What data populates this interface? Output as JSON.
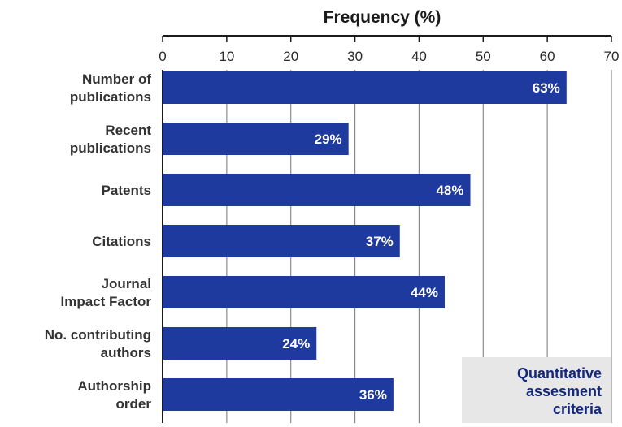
{
  "chart_data": {
    "type": "bar",
    "orientation": "horizontal",
    "title": "Frequency (%)",
    "xlim": [
      0,
      70
    ],
    "x_ticks": [
      0,
      10,
      20,
      30,
      40,
      50,
      60,
      70
    ],
    "grid": true,
    "bar_color": "#1f3a9e",
    "categories": [
      [
        "Number of",
        "publications"
      ],
      [
        "Recent",
        "publications"
      ],
      [
        "Patents"
      ],
      [
        "Citations"
      ],
      [
        "Journal",
        "Impact Factor"
      ],
      [
        "No. contributing",
        "authors"
      ],
      [
        "Authorship",
        "order"
      ]
    ],
    "values": [
      63,
      29,
      48,
      37,
      44,
      24,
      36
    ],
    "value_labels": [
      "63%",
      "29%",
      "48%",
      "37%",
      "44%",
      "24%",
      "36%"
    ],
    "annotation": [
      "Quantitative",
      "assesment",
      "criteria"
    ],
    "annotation_color": "#14287a"
  }
}
